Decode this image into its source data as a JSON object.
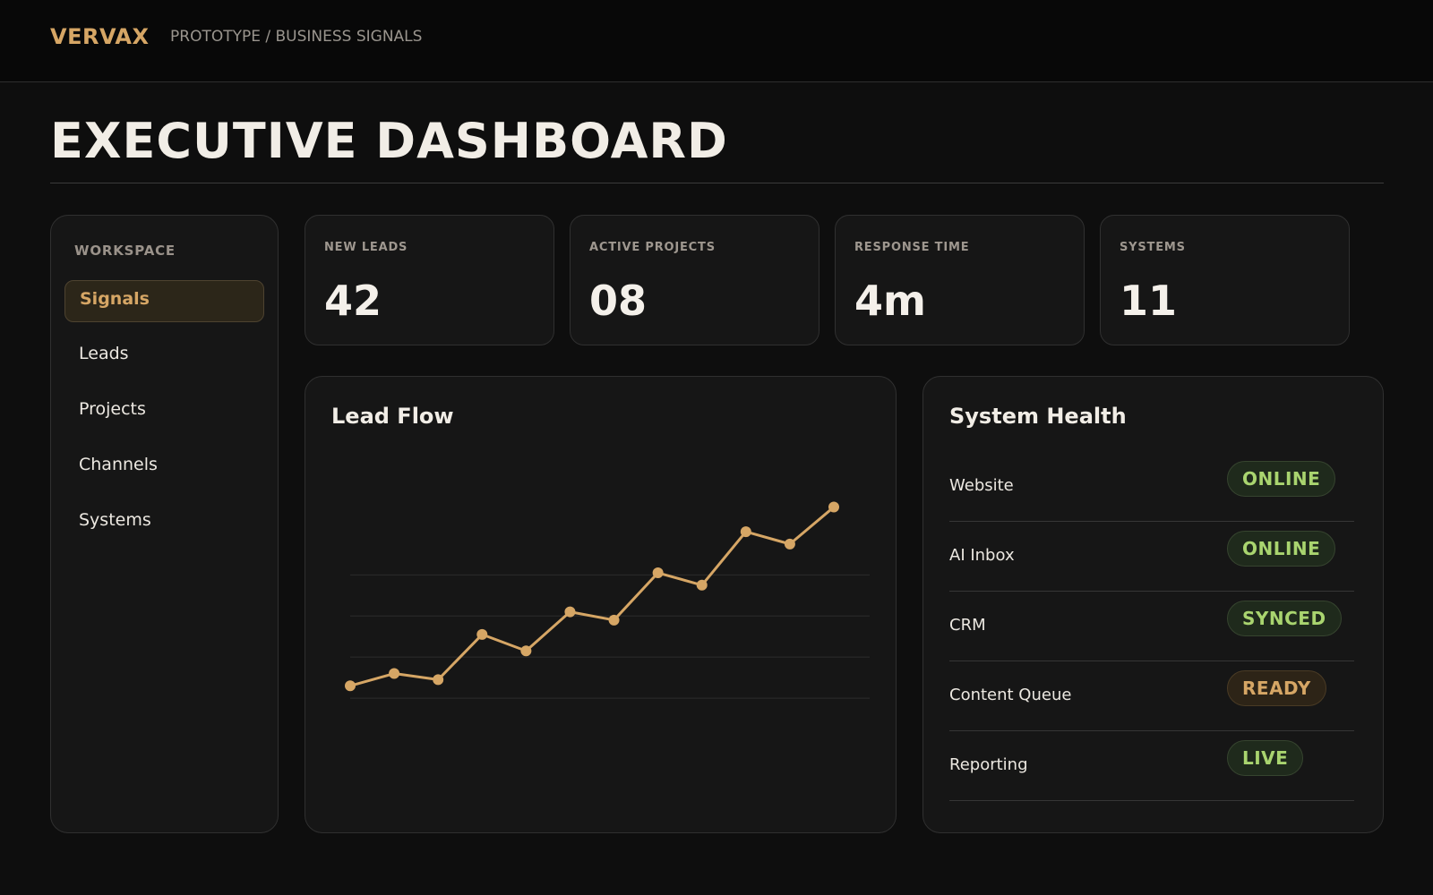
{
  "app": {
    "brand": "VERVAX",
    "breadcrumb": "PROTOTYPE / BUSINESS SIGNALS"
  },
  "page": {
    "title": "EXECUTIVE DASHBOARD"
  },
  "sidebar": {
    "heading": "WORKSPACE",
    "items": [
      {
        "label": "Signals",
        "active": true
      },
      {
        "label": "Leads",
        "active": false
      },
      {
        "label": "Projects",
        "active": false
      },
      {
        "label": "Channels",
        "active": false
      },
      {
        "label": "Systems",
        "active": false
      }
    ]
  },
  "stats": [
    {
      "label": "NEW LEADS",
      "value": "42"
    },
    {
      "label": "ACTIVE PROJECTS",
      "value": "08"
    },
    {
      "label": "RESPONSE TIME",
      "value": "4m"
    },
    {
      "label": "SYSTEMS",
      "value": "11"
    }
  ],
  "lead_flow": {
    "title": "Lead Flow"
  },
  "system_health": {
    "title": "System Health",
    "rows": [
      {
        "name": "Website",
        "status": "ONLINE",
        "tone": "green"
      },
      {
        "name": "AI Inbox",
        "status": "ONLINE",
        "tone": "green"
      },
      {
        "name": "CRM",
        "status": "SYNCED",
        "tone": "green"
      },
      {
        "name": "Content Queue",
        "status": "READY",
        "tone": "amber"
      },
      {
        "name": "Reporting",
        "status": "LIVE",
        "tone": "green"
      }
    ]
  },
  "colors": {
    "accent": "#d6a665",
    "status_green": "#a9d46f",
    "background": "#0e0e0e",
    "panel": "#161616"
  },
  "chart_data": {
    "type": "line",
    "x": [
      1,
      2,
      3,
      4,
      5,
      6,
      7,
      8,
      9,
      10,
      11,
      12
    ],
    "series": [
      {
        "values": [
          3,
          6,
          4.5,
          15.5,
          11.5,
          21,
          19,
          30.5,
          27.5,
          40.5,
          37.5,
          46.5
        ]
      }
    ],
    "ylim": [
      -10,
      52.5
    ],
    "grid": true,
    "gridlines": [
      0,
      10,
      20,
      30
    ],
    "line_color": "#d6a665"
  }
}
